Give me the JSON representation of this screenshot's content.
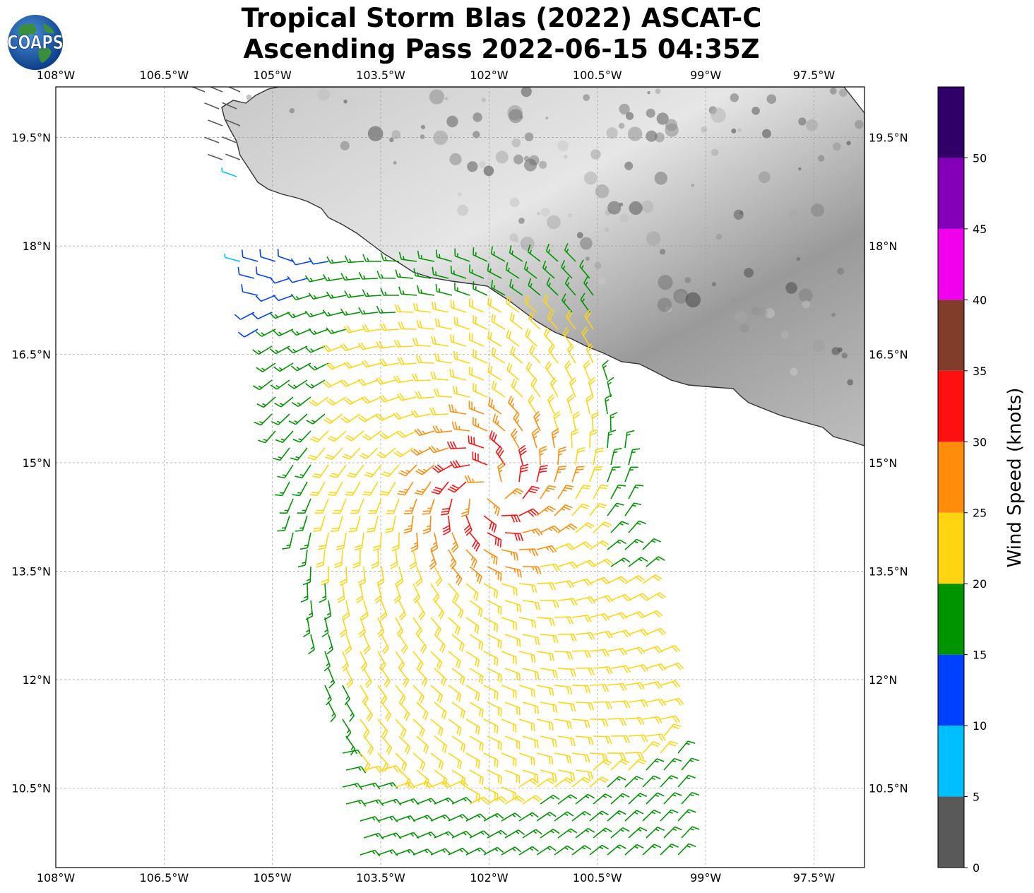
{
  "title": {
    "line1": "Tropical Storm Blas (2022) ASCAT-C",
    "line2": "Ascending Pass 2022-06-15 04:35Z"
  },
  "logo": {
    "text": "COAPS",
    "icon": "globe-icon"
  },
  "map": {
    "lon_range": [
      -108.0,
      -96.8
    ],
    "lat_range": [
      9.4,
      20.2
    ],
    "lon_ticks": [
      {
        "value": -108.0,
        "label": "108°W"
      },
      {
        "value": -106.5,
        "label": "106.5°W"
      },
      {
        "value": -105.0,
        "label": "105°W"
      },
      {
        "value": -103.5,
        "label": "103.5°W"
      },
      {
        "value": -102.0,
        "label": "102°W"
      },
      {
        "value": -100.5,
        "label": "100.5°W"
      },
      {
        "value": -99.0,
        "label": "99°W"
      },
      {
        "value": -97.5,
        "label": "97.5°W"
      }
    ],
    "lat_ticks": [
      {
        "value": 19.5,
        "label": "19.5°N"
      },
      {
        "value": 18.0,
        "label": "18°N"
      },
      {
        "value": 16.5,
        "label": "16.5°N"
      },
      {
        "value": 15.0,
        "label": "15°N"
      },
      {
        "value": 13.5,
        "label": "13.5°N"
      },
      {
        "value": 12.0,
        "label": "12°N"
      },
      {
        "value": 10.5,
        "label": "10.5°N"
      }
    ],
    "grid": true,
    "land_color": "#d8d8d8",
    "coast_color": "#333333"
  },
  "chart_data": {
    "type": "wind-barb map",
    "storm_center": {
      "lon": -102.0,
      "lat": 14.6
    },
    "max_wind_kt": 35,
    "colorbar": {
      "label": "Wind Speed (knots)",
      "ticks": [
        0,
        5,
        10,
        15,
        20,
        25,
        30,
        35,
        40,
        45,
        50
      ],
      "max": 55,
      "bins": [
        {
          "from": 0,
          "to": 5,
          "color": "#595959"
        },
        {
          "from": 5,
          "to": 10,
          "color": "#00bfff"
        },
        {
          "from": 10,
          "to": 15,
          "color": "#0040ff"
        },
        {
          "from": 15,
          "to": 20,
          "color": "#009500"
        },
        {
          "from": 20,
          "to": 25,
          "color": "#ffd511"
        },
        {
          "from": 25,
          "to": 30,
          "color": "#ff8c0a"
        },
        {
          "from": 30,
          "to": 35,
          "color": "#ff1010"
        },
        {
          "from": 35,
          "to": 40,
          "color": "#823c2a"
        },
        {
          "from": 40,
          "to": 45,
          "color": "#f000ec"
        },
        {
          "from": 45,
          "to": 50,
          "color": "#8400b8"
        },
        {
          "from": 50,
          "to": 55,
          "color": "#300068"
        }
      ]
    }
  }
}
